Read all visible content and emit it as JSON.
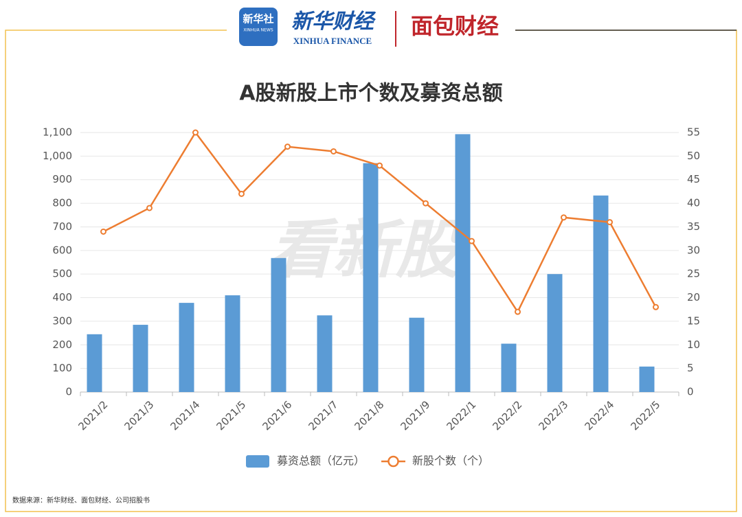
{
  "header": {
    "badge_title": "新华社",
    "badge_subtitle": "XINHUA NEWS",
    "brand": "新华财经",
    "brand_en": "XINHUA FINANCE",
    "partner": "面包财经"
  },
  "watermark": "看新股",
  "source": "数据来源：新华财经、面包财经、公司招股书",
  "chart_data": {
    "type": "bar-line",
    "title": "A股新股上市个数及募资总额",
    "categories": [
      "2021/2",
      "2021/3",
      "2021/4",
      "2021/5",
      "2021/6",
      "2021/7",
      "2021/8",
      "2021/9",
      "2022/1",
      "2022/2",
      "2022/3",
      "2022/4",
      "2022/5"
    ],
    "series": [
      {
        "name": "募资总额（亿元）",
        "type": "bar",
        "color": "#5b9bd5",
        "values": [
          245,
          285,
          378,
          410,
          568,
          325,
          970,
          315,
          1093,
          205,
          500,
          833,
          108
        ]
      },
      {
        "name": "新股个数（个）",
        "type": "line",
        "axis": "y2",
        "color": "#ed7d31",
        "values": [
          34,
          39,
          55,
          42,
          52,
          51,
          48,
          40,
          32,
          17,
          37,
          36,
          18
        ]
      }
    ],
    "ylim": [
      0,
      1100
    ],
    "yticks": [
      0,
      100,
      200,
      300,
      400,
      500,
      600,
      700,
      800,
      900,
      {
        "value": 1000,
        "label": "1,000"
      },
      {
        "value": 1100,
        "label": "1,100"
      }
    ],
    "y2lim": [
      0,
      55
    ],
    "y2ticks": [
      0,
      5,
      10,
      15,
      20,
      25,
      30,
      35,
      40,
      45,
      50,
      55
    ],
    "grid": true,
    "legend": "bottom"
  }
}
